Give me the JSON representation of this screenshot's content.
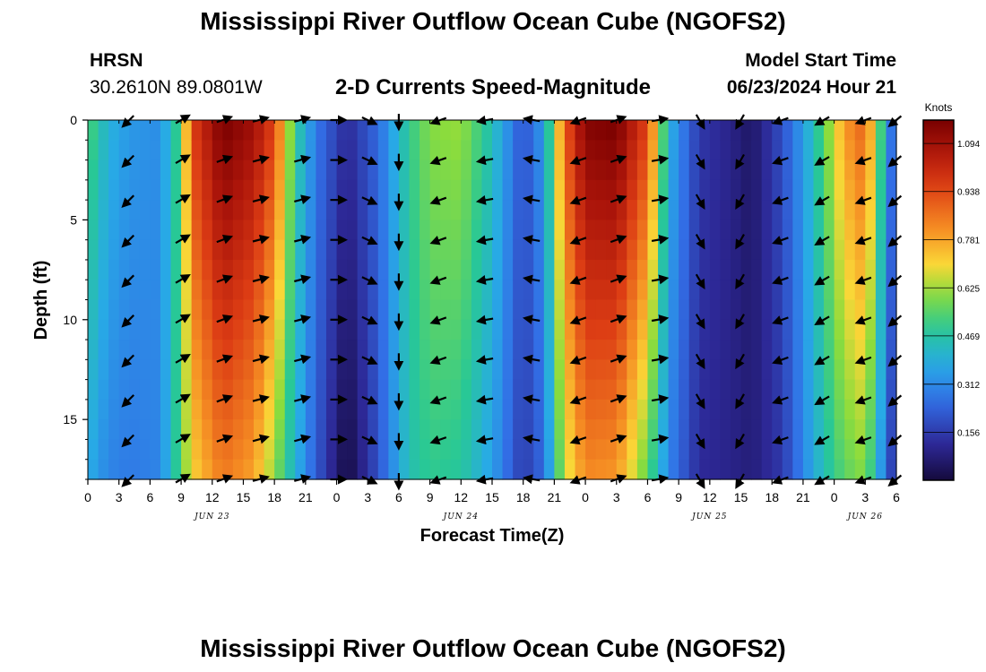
{
  "header": {
    "title": "Mississippi River Outflow Ocean Cube (NGOFS2)",
    "station_code": "HRSN",
    "station_coords": "30.2610N  89.0801W",
    "plot_heading": "2-D Currents Speed-Magnitude",
    "model_start_label": "Model Start Time",
    "model_start_value": "06/23/2024 Hour 21"
  },
  "footer": {
    "title": "Mississippi River Outflow Ocean Cube (NGOFS2)"
  },
  "chart_data": {
    "type": "heatmap",
    "title": "2-D Currents Speed-Magnitude",
    "xlabel": "Forecast Time(Z)",
    "ylabel": "Depth (ft)",
    "x_range_hours": [
      0,
      78
    ],
    "ylim": [
      0,
      18
    ],
    "y_ticks": [
      0,
      5,
      10,
      15
    ],
    "x_tick_step_hours": 3,
    "x_tick_labels": [
      "0",
      "3",
      "6",
      "9",
      "12",
      "15",
      "18",
      "21",
      "0",
      "3",
      "6",
      "9",
      "12",
      "15",
      "18",
      "21",
      "0",
      "3",
      "6",
      "9",
      "12",
      "15",
      "18",
      "21",
      "0",
      "3",
      "6"
    ],
    "date_labels": [
      {
        "label": "JUN 23",
        "hour": 12
      },
      {
        "label": "JUN 24",
        "hour": 36
      },
      {
        "label": "JUN 25",
        "hour": 60
      },
      {
        "label": "JUN 26",
        "hour": 75
      }
    ],
    "colorbar": {
      "unit": "Knots",
      "min": 0.0,
      "max": 1.17,
      "ticks": [
        "1.094",
        "0.938",
        "0.781",
        "0.625",
        "0.469",
        "0.312",
        "0.156"
      ]
    },
    "speed_profile_knots": [
      {
        "hour": 0,
        "surface": 0.55,
        "bottom": 0.38
      },
      {
        "hour": 2,
        "surface": 0.4,
        "bottom": 0.3
      },
      {
        "hour": 4,
        "surface": 0.34,
        "bottom": 0.28
      },
      {
        "hour": 7,
        "surface": 0.32,
        "bottom": 0.3
      },
      {
        "hour": 9,
        "surface": 0.55,
        "bottom": 0.55
      },
      {
        "hour": 10,
        "surface": 0.95,
        "bottom": 0.7
      },
      {
        "hour": 13,
        "surface": 1.17,
        "bottom": 0.85
      },
      {
        "hour": 16,
        "surface": 1.1,
        "bottom": 0.78
      },
      {
        "hour": 18,
        "surface": 0.95,
        "bottom": 0.6
      },
      {
        "hour": 20,
        "surface": 0.5,
        "bottom": 0.4
      },
      {
        "hour": 22,
        "surface": 0.28,
        "bottom": 0.22
      },
      {
        "hour": 25,
        "surface": 0.12,
        "bottom": 0.0
      },
      {
        "hour": 28,
        "surface": 0.25,
        "bottom": 0.2
      },
      {
        "hour": 31,
        "surface": 0.5,
        "bottom": 0.45
      },
      {
        "hour": 33,
        "surface": 0.6,
        "bottom": 0.5
      },
      {
        "hour": 36,
        "surface": 0.62,
        "bottom": 0.48
      },
      {
        "hour": 39,
        "surface": 0.45,
        "bottom": 0.35
      },
      {
        "hour": 42,
        "surface": 0.2,
        "bottom": 0.15
      },
      {
        "hour": 44,
        "surface": 0.35,
        "bottom": 0.25
      },
      {
        "hour": 46,
        "surface": 0.9,
        "bottom": 0.65
      },
      {
        "hour": 48,
        "surface": 1.15,
        "bottom": 0.82
      },
      {
        "hour": 51,
        "surface": 1.17,
        "bottom": 0.8
      },
      {
        "hour": 54,
        "surface": 0.95,
        "bottom": 0.55
      },
      {
        "hour": 56,
        "surface": 0.4,
        "bottom": 0.3
      },
      {
        "hour": 59,
        "surface": 0.15,
        "bottom": 0.12
      },
      {
        "hour": 62,
        "surface": 0.1,
        "bottom": 0.1
      },
      {
        "hour": 64,
        "surface": 0.05,
        "bottom": 0.08
      },
      {
        "hour": 67,
        "surface": 0.2,
        "bottom": 0.15
      },
      {
        "hour": 69,
        "surface": 0.35,
        "bottom": 0.3
      },
      {
        "hour": 71,
        "surface": 0.55,
        "bottom": 0.45
      },
      {
        "hour": 73,
        "surface": 0.8,
        "bottom": 0.55
      },
      {
        "hour": 75,
        "surface": 0.9,
        "bottom": 0.6
      },
      {
        "hour": 77,
        "surface": 0.4,
        "bottom": 0.25
      },
      {
        "hour": 78,
        "surface": 0.15,
        "bottom": 0.1
      }
    ],
    "arrow_hours": [
      4,
      9,
      13,
      16.5,
      20.5,
      24,
      27,
      30,
      34,
      38.5,
      43,
      47.5,
      51,
      55,
      59,
      63,
      67,
      71,
      75,
      78
    ],
    "arrow_depths_ft": [
      0,
      2,
      4,
      6,
      8,
      10,
      12,
      14,
      16,
      18
    ],
    "arrow_direction_deg": [
      225,
      30,
      20,
      15,
      15,
      0,
      335,
      270,
      200,
      190,
      170,
      200,
      20,
      10,
      300,
      240,
      200,
      210,
      200,
      220
    ]
  }
}
